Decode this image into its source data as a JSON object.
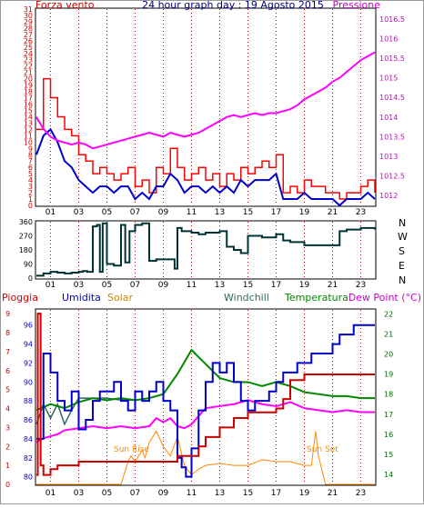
{
  "header": {
    "left_label": "Forza vento",
    "title": "24 hour graph day : 19 Agosto 2015",
    "right_label": "Pressione"
  },
  "direction_labels": [
    "N",
    "W",
    "S",
    "E",
    "N"
  ],
  "bottom_labels": {
    "pioggia": "Pioggia",
    "umidita": "Umidita",
    "solar": "Solar",
    "windchill": "Windchill",
    "temperatura": "Temperatura",
    "dewpoint": "Dew Point (°C)",
    "sunrise": "Sun Rise",
    "sunset": "Sun Set"
  },
  "colors": {
    "wind": "#ff0000",
    "wind_avg": "#0000cc",
    "pressure": "#ff00ff",
    "direction": "#003333",
    "rain": "#cc0000",
    "humidity": "#0000cc",
    "solar": "#ff8800",
    "windchill": "#336666",
    "temperature": "#008800",
    "dewpoint": "#ff00ff",
    "frame": "#000000"
  },
  "chart_data": [
    {
      "type": "line",
      "title": "24 hour graph day : 19 Agosto 2015",
      "x_ticks": [
        "01",
        "03",
        "05",
        "07",
        "09",
        "11",
        "13",
        "15",
        "17",
        "19",
        "21",
        "23"
      ],
      "left_axis": {
        "label": "Forza vento",
        "ticks": [
          "0",
          "1",
          "2",
          "3",
          "4",
          "5",
          "6",
          "7",
          "8",
          "9",
          "10",
          "11",
          "12",
          "13",
          "14",
          "15",
          "16",
          "17",
          "18",
          "19",
          "20",
          "21",
          "22",
          "23",
          "24",
          "25",
          "26",
          "27",
          "28",
          "29",
          "30",
          "31"
        ],
        "ylim": [
          0,
          31
        ]
      },
      "right_axis": {
        "label": "Pressione",
        "ticks": [
          "1012",
          "1012.5",
          "1013",
          "1013.5",
          "1014",
          "1014.5",
          "1015",
          "1015.5",
          "1016",
          "1016.5"
        ],
        "ylim": [
          1011.75,
          1016.75
        ]
      },
      "series": [
        {
          "name": "Forza vento",
          "axis": "left",
          "x": [
            0,
            0.5,
            1,
            1.5,
            2,
            2.5,
            3,
            3.5,
            4,
            4.5,
            5,
            5.5,
            6,
            6.5,
            7,
            7.5,
            8,
            8.5,
            9,
            9.5,
            10,
            10.5,
            11,
            11.5,
            12,
            12.5,
            13,
            13.5,
            14,
            14.5,
            15,
            15.5,
            16,
            16.5,
            17,
            17.5,
            18,
            18.5,
            19,
            19.5,
            20,
            20.5,
            21,
            21.5,
            22,
            22.5,
            23,
            23.5,
            24
          ],
          "values": [
            12,
            20,
            17,
            14,
            12,
            11,
            8,
            7,
            5,
            6,
            5,
            4,
            5,
            6,
            3,
            4,
            2,
            6,
            5,
            9,
            6,
            4,
            5,
            6,
            4,
            5,
            3,
            5,
            4,
            6,
            5,
            6,
            7,
            6,
            8,
            2,
            3,
            2,
            4,
            3,
            3,
            2,
            2,
            1,
            2,
            2,
            3,
            4,
            2
          ]
        },
        {
          "name": "Forza vento (media)",
          "axis": "left",
          "x": [
            0,
            0.5,
            1,
            1.5,
            2,
            2.5,
            3,
            3.5,
            4,
            4.5,
            5,
            5.5,
            6,
            6.5,
            7,
            7.5,
            8,
            8.5,
            9,
            9.5,
            10,
            10.5,
            11,
            11.5,
            12,
            12.5,
            13,
            13.5,
            14,
            14.5,
            15,
            15.5,
            16,
            16.5,
            17,
            17.5,
            18,
            18.5,
            19,
            19.5,
            20,
            20.5,
            21,
            21.5,
            22,
            22.5,
            23,
            23.5,
            24
          ],
          "values": [
            8,
            11,
            12,
            10,
            7,
            6,
            4,
            3,
            2,
            3,
            3,
            2,
            3,
            3,
            1,
            2,
            1,
            3,
            3,
            5,
            4,
            2,
            3,
            3,
            2,
            3,
            2,
            3,
            2,
            4,
            3,
            4,
            4,
            4,
            5,
            1,
            1,
            1,
            2,
            1,
            1,
            1,
            1,
            0,
            1,
            1,
            1,
            2,
            1
          ]
        },
        {
          "name": "Pressione",
          "axis": "right",
          "x": [
            0,
            0.5,
            1,
            1.5,
            2,
            2.5,
            3,
            3.5,
            4,
            4.5,
            5,
            5.5,
            6,
            6.5,
            7,
            7.5,
            8,
            8.5,
            9,
            9.5,
            10,
            10.5,
            11,
            11.5,
            12,
            12.5,
            13,
            13.5,
            14,
            14.5,
            15,
            15.5,
            16,
            16.5,
            17,
            17.5,
            18,
            18.5,
            19,
            19.5,
            20,
            20.5,
            21,
            21.5,
            22,
            22.5,
            23,
            23.5,
            24
          ],
          "values": [
            1014.0,
            1013.7,
            1013.5,
            1013.4,
            1013.35,
            1013.3,
            1013.35,
            1013.3,
            1013.2,
            1013.25,
            1013.3,
            1013.35,
            1013.4,
            1013.45,
            1013.5,
            1013.55,
            1013.6,
            1013.55,
            1013.5,
            1013.6,
            1013.55,
            1013.5,
            1013.55,
            1013.6,
            1013.7,
            1013.8,
            1013.9,
            1014.0,
            1014.05,
            1014.0,
            1014.05,
            1014.1,
            1014.05,
            1014.1,
            1014.1,
            1014.15,
            1014.2,
            1014.3,
            1014.45,
            1014.55,
            1014.65,
            1014.75,
            1014.9,
            1015.0,
            1015.15,
            1015.3,
            1015.45,
            1015.55,
            1015.65
          ]
        }
      ]
    },
    {
      "type": "line",
      "title": "",
      "x_ticks": [
        "01",
        "03",
        "05",
        "07",
        "09",
        "11",
        "13",
        "15",
        "17",
        "19",
        "21",
        "23"
      ],
      "left_axis": {
        "ticks": [
          "0",
          "90",
          "180",
          "270",
          "360"
        ],
        "ylim": [
          0,
          360
        ]
      },
      "series": [
        {
          "name": "Direzione vento",
          "x": [
            0,
            0.5,
            1,
            1.5,
            2,
            2.5,
            3,
            3.3,
            3.6,
            4,
            4.3,
            4.5,
            4.7,
            5,
            5.5,
            6,
            6.3,
            6.6,
            7,
            7.5,
            8,
            8.5,
            9,
            9.5,
            9.8,
            10,
            10.3,
            11,
            11.5,
            12,
            13,
            13.5,
            14,
            14.5,
            15,
            16,
            17,
            17.5,
            18,
            19,
            20,
            21,
            21.5,
            22,
            23,
            24
          ],
          "values": [
            15,
            30,
            40,
            35,
            30,
            35,
            40,
            45,
            40,
            330,
            340,
            40,
            350,
            90,
            80,
            340,
            100,
            300,
            340,
            350,
            110,
            120,
            120,
            120,
            60,
            320,
            300,
            290,
            280,
            290,
            300,
            200,
            180,
            160,
            270,
            260,
            280,
            240,
            230,
            210,
            210,
            210,
            300,
            310,
            320,
            310
          ]
        }
      ]
    },
    {
      "type": "line",
      "title": "",
      "x_ticks": [
        "01",
        "03",
        "05",
        "07",
        "09",
        "11",
        "13",
        "15",
        "17",
        "19",
        "21",
        "23"
      ],
      "left_axis": {
        "label": "Umidita",
        "ticks": [
          "80",
          "82",
          "84",
          "86",
          "88",
          "90",
          "92",
          "94",
          "96"
        ],
        "ylim": [
          79.2,
          97.6
        ]
      },
      "rain_axis": {
        "label": "Pioggia",
        "ticks": [
          "0",
          "1",
          "2",
          "3",
          "4",
          "5",
          "6",
          "7",
          "8",
          "9"
        ],
        "ylim": [
          0,
          9.2
        ]
      },
      "right_axis": {
        "label": "Dew Point (°C)",
        "ticks": [
          "14",
          "15",
          "16",
          "17",
          "18",
          "19",
          "20",
          "21",
          "22"
        ],
        "ylim": [
          13.5,
          22.2
        ]
      },
      "annotations": [
        "Sun Rise",
        "Sun Set"
      ],
      "series": [
        {
          "name": "Umidita",
          "axis": "left",
          "x": [
            0,
            0.5,
            1,
            1.5,
            2,
            2.5,
            3,
            3.5,
            4,
            4.5,
            5,
            5.5,
            6,
            6.5,
            7,
            7.5,
            8,
            8.5,
            9,
            9.5,
            10,
            10.3,
            10.6,
            11,
            11.5,
            12,
            12.5,
            13,
            13.5,
            14,
            14.5,
            15,
            15.5,
            16,
            16.5,
            17,
            17.5,
            18,
            18.5,
            19,
            19.5,
            20,
            20.5,
            21,
            21.5,
            22,
            22.5,
            23,
            23.5,
            24
          ],
          "values": [
            84,
            93,
            91,
            88,
            87,
            89,
            85,
            86,
            88,
            89,
            89,
            90,
            88,
            87,
            89,
            88,
            89,
            90,
            88,
            87,
            82,
            81,
            80,
            83,
            87,
            90,
            92,
            91,
            92,
            90,
            88,
            87,
            88,
            88,
            89,
            90,
            91,
            91,
            92,
            92,
            93,
            93,
            93,
            94,
            95,
            95,
            96,
            96,
            96,
            96
          ]
        },
        {
          "name": "Pioggia",
          "axis": "rain",
          "x": [
            0,
            0.1,
            0.2,
            0.3,
            0.5,
            1,
            1.5,
            2,
            3,
            4,
            5,
            6,
            7,
            8,
            9,
            10,
            11,
            11.5,
            12,
            13,
            14,
            15,
            16,
            17,
            17.5,
            18,
            19,
            20,
            21,
            22,
            23,
            24
          ],
          "values": [
            0.5,
            9,
            9,
            1,
            0.5,
            0.8,
            1.0,
            1.0,
            1.2,
            1.2,
            1.2,
            1.2,
            1.2,
            1.2,
            1.2,
            1.5,
            1.5,
            2.0,
            2.5,
            3.0,
            3.5,
            3.8,
            3.8,
            4.0,
            4.5,
            5.5,
            5.8,
            5.8,
            5.8,
            5.8,
            5.8,
            5.8
          ]
        },
        {
          "name": "Solar",
          "axis": "rain",
          "x": [
            0,
            5,
            6,
            6.5,
            6.7,
            7,
            7.5,
            7.7,
            8,
            8.5,
            9,
            9.5,
            10,
            10.5,
            11,
            11.5,
            12,
            13,
            14,
            15,
            16,
            17,
            18,
            19,
            19.5,
            19.8,
            20,
            20.5,
            24
          ],
          "values": [
            0,
            0,
            0,
            1.2,
            1.5,
            1.2,
            1.8,
            1.4,
            2.2,
            2.8,
            2.0,
            1.5,
            2.5,
            1.0,
            0.5,
            0.8,
            1.0,
            1.1,
            1.0,
            1.0,
            1.3,
            1.2,
            1.2,
            1.0,
            1.0,
            2.8,
            1.5,
            0,
            0
          ]
        },
        {
          "name": "Windchill",
          "axis": "right",
          "x": [
            0,
            0.5,
            1,
            1.5,
            2,
            2.5,
            3,
            4,
            5,
            6,
            7,
            8,
            9,
            10,
            11,
            12,
            13,
            14,
            15,
            16,
            17,
            18,
            19,
            20,
            21,
            22,
            23,
            24
          ],
          "values": [
            16.5,
            17.5,
            16.8,
            17.5,
            16.5,
            17.2,
            17.8,
            17.8,
            17.8,
            17.7,
            17.7,
            17.8,
            18.0,
            19.0,
            20.2,
            19.5,
            18.8,
            18.6,
            18.6,
            18.4,
            18.6,
            18.4,
            18.1,
            18.0,
            17.9,
            17.9,
            17.8,
            17.8
          ]
        },
        {
          "name": "Temperatura",
          "axis": "right",
          "x": [
            0,
            1,
            2,
            3,
            4,
            5,
            6,
            7,
            8,
            9,
            10,
            11,
            12,
            13,
            14,
            15,
            16,
            17,
            18,
            19,
            20,
            21,
            22,
            23,
            24
          ],
          "values": [
            17.2,
            17.5,
            17.3,
            17.6,
            17.8,
            17.7,
            17.8,
            17.7,
            17.8,
            18.0,
            19.0,
            20.2,
            19.5,
            18.8,
            18.6,
            18.6,
            18.4,
            18.6,
            18.4,
            18.1,
            18.0,
            17.9,
            17.9,
            17.8,
            17.8
          ]
        },
        {
          "name": "Dew Point",
          "axis": "right",
          "x": [
            0,
            0.5,
            1,
            1.5,
            2,
            3,
            4,
            5,
            6,
            7,
            8,
            8.5,
            9,
            9.5,
            10,
            10.5,
            11,
            11.5,
            12,
            13,
            14,
            15,
            16,
            17,
            18,
            19,
            20,
            21,
            22,
            23,
            24
          ],
          "values": [
            15.6,
            15.8,
            15.9,
            16.0,
            16.2,
            16.3,
            16.4,
            16.3,
            16.4,
            16.3,
            16.4,
            16.8,
            16.6,
            16.8,
            16.4,
            16.3,
            16.5,
            16.9,
            17.3,
            17.4,
            17.5,
            17.7,
            17.5,
            17.4,
            17.6,
            17.3,
            17.2,
            17.1,
            17.2,
            17.1,
            17.1
          ]
        }
      ]
    }
  ]
}
